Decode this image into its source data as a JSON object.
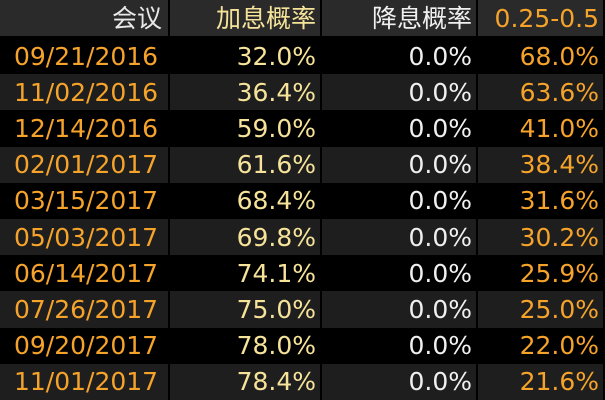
{
  "table": {
    "headers": [
      "会议",
      "加息概率",
      "降息概率",
      "0.25-0.5"
    ],
    "rows": [
      [
        "09/21/2016",
        "32.0%",
        "0.0%",
        "68.0%"
      ],
      [
        "11/02/2016",
        "36.4%",
        "0.0%",
        "63.6%"
      ],
      [
        "12/14/2016",
        "59.0%",
        "0.0%",
        "41.0%"
      ],
      [
        "02/01/2017",
        "61.6%",
        "0.0%",
        "38.4%"
      ],
      [
        "03/15/2017",
        "68.4%",
        "0.0%",
        "31.6%"
      ],
      [
        "05/03/2017",
        "69.8%",
        "0.0%",
        "30.2%"
      ],
      [
        "06/14/2017",
        "74.1%",
        "0.0%",
        "25.9%"
      ],
      [
        "07/26/2017",
        "75.0%",
        "0.0%",
        "25.0%"
      ],
      [
        "09/20/2017",
        "78.0%",
        "0.0%",
        "22.0%"
      ],
      [
        "11/01/2017",
        "78.4%",
        "0.0%",
        "21.6%"
      ]
    ]
  }
}
